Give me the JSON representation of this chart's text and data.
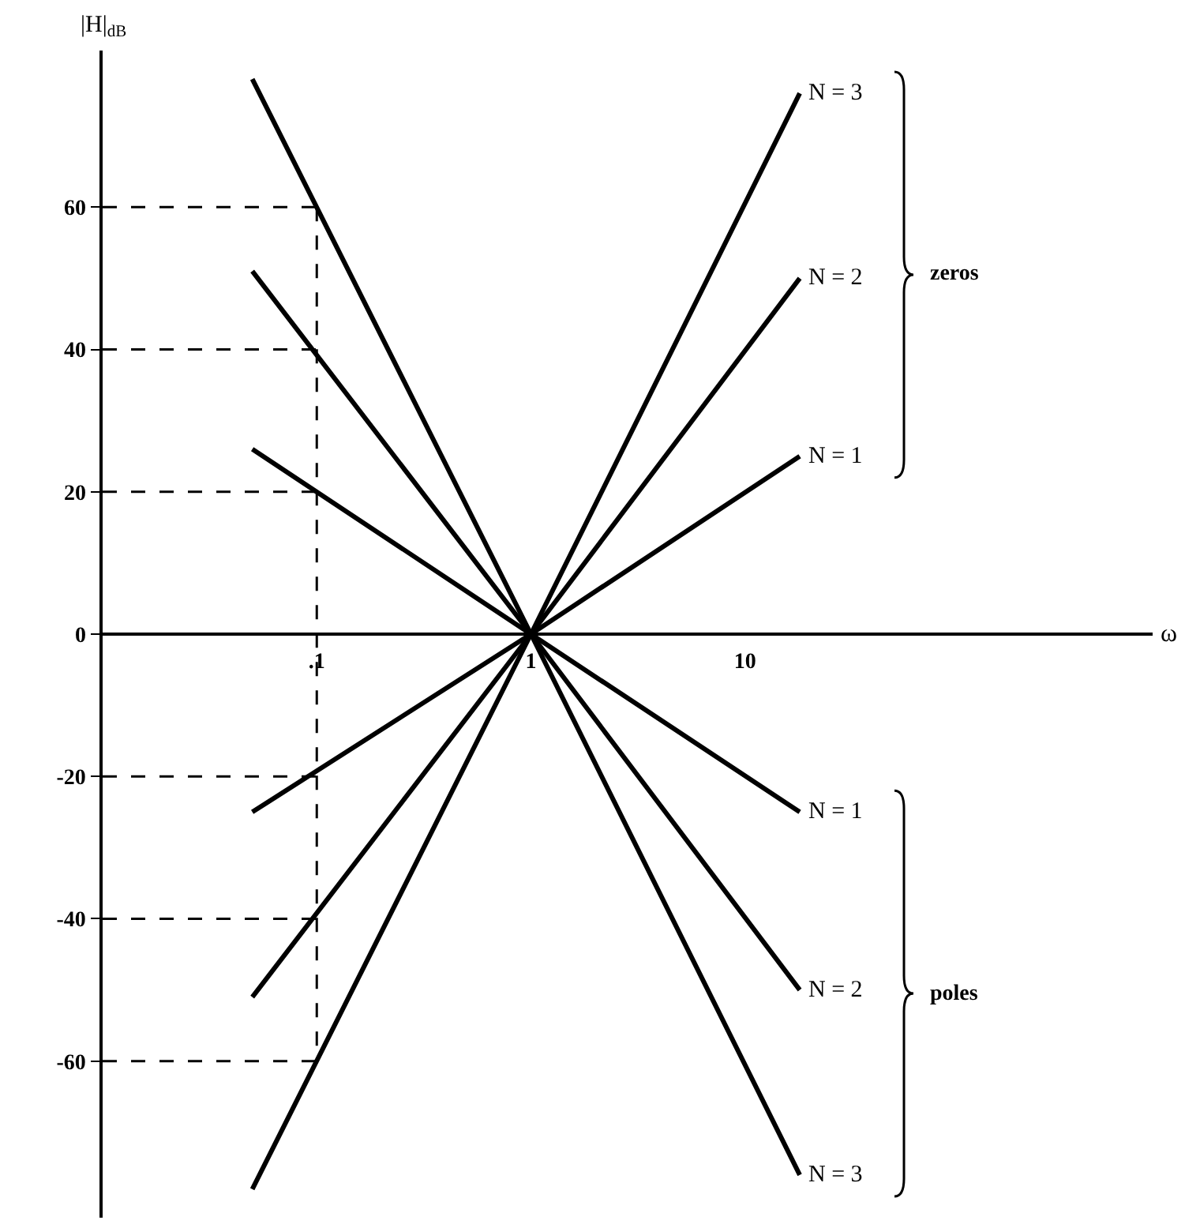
{
  "chart_data": {
    "type": "line",
    "ylabel": "|H|$_{dB}$",
    "xlabel": "ω",
    "log": "x",
    "xlim": [
      0.01,
      800
    ],
    "xticks": [
      {
        "value": 0.1,
        "label": ".1"
      },
      1,
      10
    ],
    "ylim": [
      -82,
      82
    ],
    "yticks": [
      -60,
      -40,
      -20,
      0,
      20,
      40,
      60
    ],
    "grid": false,
    "legend": false,
    "marker": "none",
    "line_style": "solid",
    "series": [
      {
        "name": "N = 3",
        "color": "#000000",
        "x": [
          0.05,
          1,
          18
        ],
        "values": [
          -78,
          0,
          76
        ]
      },
      {
        "name": "N = 2",
        "color": "#000000",
        "x": [
          0.05,
          1,
          18
        ],
        "values": [
          -51,
          0,
          50
        ]
      },
      {
        "name": "N = 1",
        "color": "#000000",
        "x": [
          0.05,
          1,
          18
        ],
        "values": [
          -25,
          0,
          25
        ]
      },
      {
        "name": "N = 1",
        "color": "#000000",
        "x": [
          0.05,
          1,
          18
        ],
        "values": [
          26,
          0,
          -25
        ]
      },
      {
        "name": "N = 2",
        "color": "#000000",
        "x": [
          0.05,
          1,
          18
        ],
        "values": [
          51,
          0,
          -50
        ]
      },
      {
        "name": "N = 3",
        "color": "#000000",
        "x": [
          0.05,
          1,
          18
        ],
        "values": [
          78,
          0,
          -76
        ]
      },
      {
        "color": "#000000",
        "line_style": "dashed",
        "x": [
          0.01,
          0.1
        ],
        "values": [
          60,
          60
        ]
      },
      {
        "color": "#000000",
        "line_style": "dashed",
        "x": [
          0.01,
          0.1
        ],
        "values": [
          40,
          40
        ]
      },
      {
        "color": "#000000",
        "line_style": "dashed",
        "x": [
          0.01,
          0.1
        ],
        "values": [
          20,
          20
        ]
      },
      {
        "color": "#000000",
        "line_style": "dashed",
        "x": [
          0.01,
          0.1
        ],
        "values": [
          -20,
          -20
        ]
      },
      {
        "color": "#000000",
        "line_style": "dashed",
        "x": [
          0.01,
          0.1
        ],
        "values": [
          -40,
          -40
        ]
      },
      {
        "color": "#000000",
        "line_style": "dashed",
        "x": [
          0.01,
          0.1
        ],
        "values": [
          -60,
          -60
        ]
      },
      {
        "color": "#000000",
        "line_style": "dashed",
        "x": [
          0.1,
          0.1
        ],
        "values": [
          60,
          -60
        ]
      }
    ],
    "annotations": [
      "zeros",
      "poles"
    ]
  }
}
